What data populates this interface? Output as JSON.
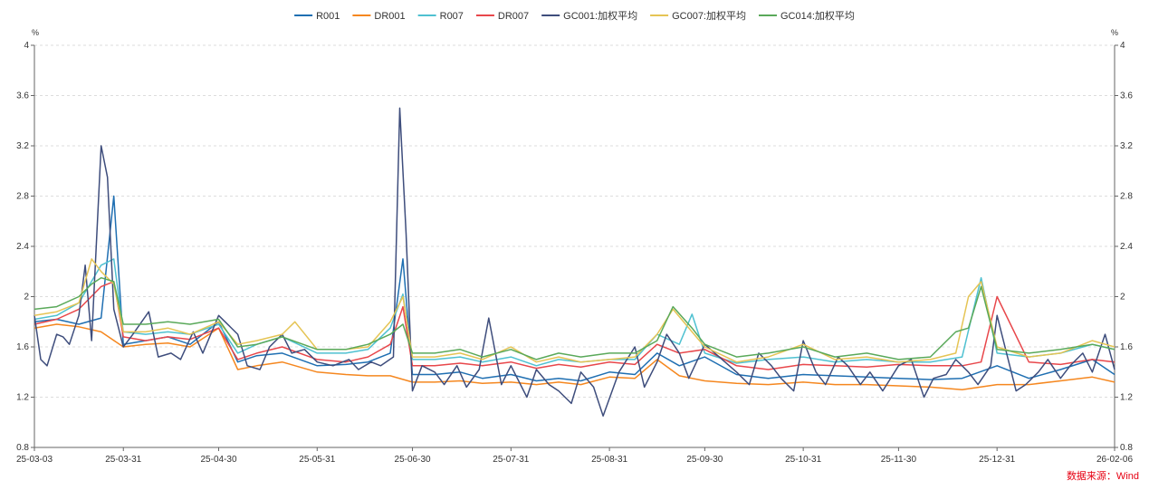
{
  "chart_data": {
    "type": "line",
    "y_unit_left": "%",
    "y_unit_right": "%",
    "ylim": [
      0.8,
      4
    ],
    "y_ticks": [
      "0.8",
      "1.2",
      "1.6",
      "2",
      "2.4",
      "2.8",
      "3.2",
      "3.6",
      "4"
    ],
    "x_ticks": [
      "25-03-03",
      "25-03-31",
      "25-04-30",
      "25-05-31",
      "25-06-30",
      "25-07-31",
      "25-08-31",
      "25-09-30",
      "25-10-31",
      "25-11-30",
      "25-12-31",
      "26-02-06"
    ],
    "grid": "horizontal dashed",
    "legend_position": "top-center",
    "source": "数据来源：Wind",
    "series": [
      {
        "name": "R001",
        "color": "#1f6fb2",
        "x": [
          "25-03-03",
          "25-03-10",
          "25-03-17",
          "25-03-24",
          "25-03-28",
          "25-03-31",
          "25-04-07",
          "25-04-14",
          "25-04-21",
          "25-04-30",
          "25-05-06",
          "25-05-12",
          "25-05-20",
          "25-05-31",
          "25-06-09",
          "25-06-16",
          "25-06-23",
          "25-06-27",
          "25-06-30",
          "25-07-07",
          "25-07-15",
          "25-07-22",
          "25-07-31",
          "25-08-08",
          "25-08-15",
          "25-08-22",
          "25-08-31",
          "25-09-08",
          "25-09-15",
          "25-09-22",
          "25-09-30",
          "25-10-10",
          "25-10-20",
          "25-10-31",
          "25-11-10",
          "25-11-20",
          "25-11-30",
          "25-12-10",
          "25-12-20",
          "25-12-31",
          "26-01-10",
          "26-01-20",
          "26-01-30",
          "26-02-06"
        ],
        "values": [
          1.8,
          1.82,
          1.78,
          1.83,
          2.8,
          1.62,
          1.65,
          1.68,
          1.62,
          1.8,
          1.48,
          1.53,
          1.55,
          1.45,
          1.46,
          1.48,
          1.55,
          2.3,
          1.38,
          1.38,
          1.4,
          1.35,
          1.38,
          1.33,
          1.35,
          1.33,
          1.4,
          1.38,
          1.55,
          1.45,
          1.52,
          1.38,
          1.35,
          1.38,
          1.37,
          1.36,
          1.35,
          1.34,
          1.35,
          1.45,
          1.35,
          1.42,
          1.5,
          1.38
        ]
      },
      {
        "name": "DR001",
        "color": "#f5871f",
        "x": [
          "25-03-03",
          "25-03-10",
          "25-03-17",
          "25-03-24",
          "25-03-31",
          "25-04-07",
          "25-04-14",
          "25-04-21",
          "25-04-30",
          "25-05-06",
          "25-05-12",
          "25-05-20",
          "25-05-31",
          "25-06-09",
          "25-06-16",
          "25-06-23",
          "25-06-30",
          "25-07-07",
          "25-07-15",
          "25-07-22",
          "25-07-31",
          "25-08-08",
          "25-08-15",
          "25-08-22",
          "25-08-31",
          "25-09-08",
          "25-09-15",
          "25-09-22",
          "25-09-30",
          "25-10-10",
          "25-10-20",
          "25-10-31",
          "25-11-10",
          "25-11-20",
          "25-11-30",
          "25-12-10",
          "25-12-20",
          "25-12-31",
          "26-01-10",
          "26-01-20",
          "26-01-30",
          "26-02-06"
        ],
        "values": [
          1.75,
          1.78,
          1.76,
          1.72,
          1.6,
          1.62,
          1.63,
          1.6,
          1.75,
          1.42,
          1.45,
          1.48,
          1.4,
          1.38,
          1.37,
          1.37,
          1.32,
          1.32,
          1.33,
          1.31,
          1.32,
          1.3,
          1.32,
          1.3,
          1.36,
          1.35,
          1.5,
          1.37,
          1.33,
          1.31,
          1.3,
          1.32,
          1.3,
          1.3,
          1.29,
          1.28,
          1.26,
          1.3,
          1.3,
          1.33,
          1.36,
          1.32
        ]
      },
      {
        "name": "R007",
        "color": "#4fc1d1",
        "x": [
          "25-03-03",
          "25-03-10",
          "25-03-17",
          "25-03-24",
          "25-03-28",
          "25-03-31",
          "25-04-07",
          "25-04-14",
          "25-04-21",
          "25-04-30",
          "25-05-06",
          "25-05-12",
          "25-05-20",
          "25-05-31",
          "25-06-09",
          "25-06-16",
          "25-06-23",
          "25-06-27",
          "25-06-30",
          "25-07-07",
          "25-07-15",
          "25-07-22",
          "25-07-31",
          "25-08-08",
          "25-08-15",
          "25-08-22",
          "25-08-31",
          "25-09-08",
          "25-09-15",
          "25-09-22",
          "25-09-26",
          "25-09-30",
          "25-10-10",
          "25-10-20",
          "25-10-31",
          "25-11-10",
          "25-11-20",
          "25-11-30",
          "25-12-10",
          "25-12-20",
          "25-12-26",
          "25-12-31",
          "26-01-10",
          "26-01-20",
          "26-01-30",
          "26-02-06"
        ],
        "values": [
          1.82,
          1.85,
          1.95,
          2.25,
          2.3,
          1.72,
          1.7,
          1.72,
          1.7,
          1.78,
          1.55,
          1.62,
          1.68,
          1.55,
          1.55,
          1.58,
          1.75,
          2.02,
          1.5,
          1.5,
          1.52,
          1.48,
          1.52,
          1.45,
          1.5,
          1.48,
          1.5,
          1.5,
          1.7,
          1.62,
          1.86,
          1.55,
          1.47,
          1.5,
          1.52,
          1.48,
          1.5,
          1.48,
          1.48,
          1.52,
          2.15,
          1.55,
          1.52,
          1.55,
          1.62,
          1.58
        ]
      },
      {
        "name": "DR007",
        "color": "#e8474b",
        "x": [
          "25-03-03",
          "25-03-10",
          "25-03-17",
          "25-03-24",
          "25-03-28",
          "25-03-31",
          "25-04-07",
          "25-04-14",
          "25-04-21",
          "25-04-30",
          "25-05-06",
          "25-05-12",
          "25-05-20",
          "25-05-31",
          "25-06-09",
          "25-06-16",
          "25-06-23",
          "25-06-27",
          "25-06-30",
          "25-07-07",
          "25-07-15",
          "25-07-22",
          "25-07-31",
          "25-08-08",
          "25-08-15",
          "25-08-22",
          "25-08-31",
          "25-09-08",
          "25-09-15",
          "25-09-22",
          "25-09-30",
          "25-10-10",
          "25-10-20",
          "25-10-31",
          "25-11-10",
          "25-11-20",
          "25-11-30",
          "25-12-10",
          "25-12-20",
          "25-12-26",
          "25-12-31",
          "26-01-10",
          "26-01-20",
          "26-01-30",
          "26-02-06"
        ],
        "values": [
          1.78,
          1.82,
          1.9,
          2.08,
          2.12,
          1.68,
          1.65,
          1.68,
          1.66,
          1.75,
          1.5,
          1.55,
          1.6,
          1.5,
          1.48,
          1.52,
          1.62,
          1.92,
          1.45,
          1.45,
          1.47,
          1.45,
          1.48,
          1.43,
          1.46,
          1.44,
          1.48,
          1.46,
          1.62,
          1.55,
          1.58,
          1.45,
          1.42,
          1.46,
          1.45,
          1.44,
          1.46,
          1.45,
          1.45,
          1.48,
          2.0,
          1.48,
          1.46,
          1.5,
          1.48
        ]
      },
      {
        "name": "GC001:加权平均",
        "color": "#3e4d7c",
        "x": [
          "25-03-03",
          "25-03-05",
          "25-03-07",
          "25-03-10",
          "25-03-12",
          "25-03-14",
          "25-03-17",
          "25-03-19",
          "25-03-21",
          "25-03-24",
          "25-03-26",
          "25-03-28",
          "25-03-31",
          "25-04-03",
          "25-04-08",
          "25-04-11",
          "25-04-15",
          "25-04-18",
          "25-04-22",
          "25-04-25",
          "25-04-30",
          "25-05-06",
          "25-05-09",
          "25-05-13",
          "25-05-16",
          "25-05-20",
          "25-05-23",
          "25-05-27",
          "25-05-31",
          "25-06-05",
          "25-06-10",
          "25-06-13",
          "25-06-17",
          "25-06-20",
          "25-06-24",
          "25-06-26",
          "25-06-28",
          "25-06-30",
          "25-07-03",
          "25-07-07",
          "25-07-10",
          "25-07-14",
          "25-07-17",
          "25-07-21",
          "25-07-24",
          "25-07-28",
          "25-07-31",
          "25-08-05",
          "25-08-08",
          "25-08-12",
          "25-08-15",
          "25-08-19",
          "25-08-22",
          "25-08-26",
          "25-08-29",
          "25-09-03",
          "25-09-08",
          "25-09-11",
          "25-09-15",
          "25-09-18",
          "25-09-22",
          "25-09-25",
          "25-09-30",
          "25-10-10",
          "25-10-14",
          "25-10-17",
          "25-10-21",
          "25-10-24",
          "25-10-28",
          "25-10-31",
          "25-11-04",
          "25-11-07",
          "25-11-11",
          "25-11-14",
          "25-11-18",
          "25-11-21",
          "25-11-25",
          "25-11-30",
          "25-12-04",
          "25-12-08",
          "25-12-11",
          "25-12-15",
          "25-12-18",
          "25-12-22",
          "25-12-25",
          "25-12-29",
          "25-12-31",
          "26-01-06",
          "26-01-09",
          "26-01-13",
          "26-01-16",
          "26-01-20",
          "26-01-23",
          "26-01-27",
          "26-01-30",
          "26-02-03",
          "26-02-06"
        ],
        "values": [
          1.85,
          1.5,
          1.45,
          1.7,
          1.68,
          1.62,
          1.85,
          2.25,
          1.65,
          3.2,
          2.95,
          1.9,
          1.6,
          1.7,
          1.88,
          1.52,
          1.55,
          1.5,
          1.72,
          1.55,
          1.85,
          1.7,
          1.45,
          1.42,
          1.6,
          1.7,
          1.55,
          1.58,
          1.48,
          1.45,
          1.5,
          1.42,
          1.48,
          1.45,
          1.52,
          3.5,
          2.5,
          1.25,
          1.45,
          1.4,
          1.3,
          1.45,
          1.28,
          1.42,
          1.83,
          1.3,
          1.45,
          1.2,
          1.42,
          1.3,
          1.25,
          1.15,
          1.4,
          1.28,
          1.05,
          1.4,
          1.6,
          1.28,
          1.48,
          1.7,
          1.55,
          1.35,
          1.62,
          1.4,
          1.3,
          1.55,
          1.45,
          1.35,
          1.25,
          1.65,
          1.4,
          1.3,
          1.52,
          1.45,
          1.3,
          1.4,
          1.25,
          1.45,
          1.5,
          1.2,
          1.35,
          1.38,
          1.5,
          1.4,
          1.3,
          1.45,
          1.85,
          1.25,
          1.3,
          1.4,
          1.5,
          1.35,
          1.45,
          1.55,
          1.4,
          1.7,
          1.42
        ]
      },
      {
        "name": "GC007:加权平均",
        "color": "#e5c454",
        "x": [
          "25-03-03",
          "25-03-10",
          "25-03-17",
          "25-03-21",
          "25-03-24",
          "25-03-28",
          "25-03-31",
          "25-04-07",
          "25-04-14",
          "25-04-21",
          "25-04-30",
          "25-05-06",
          "25-05-12",
          "25-05-20",
          "25-05-24",
          "25-05-31",
          "25-06-09",
          "25-06-16",
          "25-06-23",
          "25-06-27",
          "25-06-30",
          "25-07-07",
          "25-07-15",
          "25-07-22",
          "25-07-31",
          "25-08-08",
          "25-08-15",
          "25-08-22",
          "25-08-31",
          "25-09-08",
          "25-09-15",
          "25-09-20",
          "25-09-26",
          "25-09-30",
          "25-10-10",
          "25-10-20",
          "25-10-31",
          "25-11-10",
          "25-11-20",
          "25-11-30",
          "25-12-10",
          "25-12-18",
          "25-12-22",
          "25-12-26",
          "25-12-31",
          "26-01-10",
          "26-01-20",
          "26-01-30",
          "26-02-06"
        ],
        "values": [
          1.85,
          1.88,
          1.95,
          2.3,
          2.2,
          2.1,
          1.72,
          1.72,
          1.75,
          1.7,
          1.8,
          1.62,
          1.65,
          1.7,
          1.8,
          1.58,
          1.58,
          1.6,
          1.8,
          2.0,
          1.52,
          1.52,
          1.55,
          1.5,
          1.6,
          1.48,
          1.52,
          1.48,
          1.5,
          1.52,
          1.7,
          1.9,
          1.72,
          1.6,
          1.48,
          1.52,
          1.62,
          1.5,
          1.52,
          1.48,
          1.5,
          1.55,
          2.0,
          2.12,
          1.6,
          1.52,
          1.55,
          1.65,
          1.6
        ]
      },
      {
        "name": "GC014:加权平均",
        "color": "#5aa95a",
        "x": [
          "25-03-03",
          "25-03-10",
          "25-03-17",
          "25-03-21",
          "25-03-24",
          "25-03-28",
          "25-03-31",
          "25-04-07",
          "25-04-14",
          "25-04-21",
          "25-04-30",
          "25-05-06",
          "25-05-12",
          "25-05-20",
          "25-05-31",
          "25-06-09",
          "25-06-16",
          "25-06-23",
          "25-06-27",
          "25-06-30",
          "25-07-07",
          "25-07-15",
          "25-07-22",
          "25-07-31",
          "25-08-08",
          "25-08-15",
          "25-08-22",
          "25-08-31",
          "25-09-08",
          "25-09-15",
          "25-09-20",
          "25-09-26",
          "25-09-30",
          "25-10-10",
          "25-10-20",
          "25-10-31",
          "25-11-10",
          "25-11-20",
          "25-11-30",
          "25-12-10",
          "25-12-18",
          "25-12-22",
          "25-12-26",
          "25-12-31",
          "26-01-10",
          "26-01-20",
          "26-01-30",
          "26-02-06"
        ],
        "values": [
          1.9,
          1.92,
          2.0,
          2.1,
          2.15,
          2.12,
          1.78,
          1.78,
          1.8,
          1.78,
          1.82,
          1.6,
          1.62,
          1.68,
          1.58,
          1.58,
          1.62,
          1.7,
          1.78,
          1.55,
          1.55,
          1.58,
          1.52,
          1.58,
          1.5,
          1.55,
          1.52,
          1.55,
          1.55,
          1.65,
          1.92,
          1.75,
          1.62,
          1.52,
          1.55,
          1.6,
          1.52,
          1.55,
          1.5,
          1.52,
          1.72,
          1.75,
          2.08,
          1.58,
          1.55,
          1.58,
          1.62,
          1.58
        ]
      }
    ]
  }
}
